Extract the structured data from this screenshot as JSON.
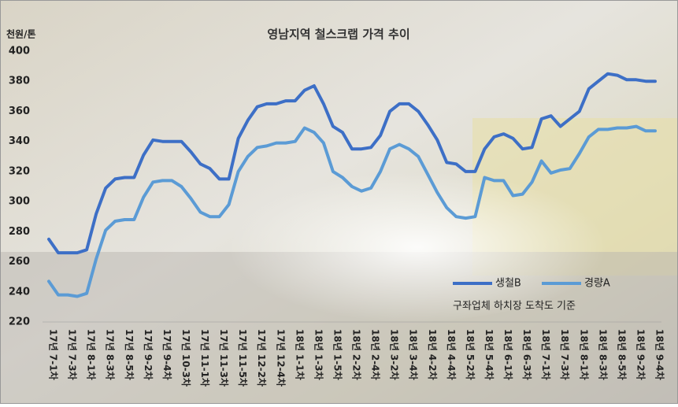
{
  "chart_data": {
    "type": "line",
    "title": "영남지역 철스크랩 가격 추이",
    "y_label": "천원/톤",
    "annotation": "구좌업체 하치장 도착도 기준",
    "categories": [
      "17년 7-1차",
      null,
      "17년 7-3차",
      null,
      "17년 8-1차",
      null,
      "17년 8-3차",
      null,
      "17년 8-5차",
      null,
      "17년 9-2차",
      null,
      "17년 9-4차",
      null,
      "17년 10-3차",
      null,
      "17년 11-1차",
      null,
      "17년 11-3차",
      null,
      "17년 11-5차",
      null,
      "17년 12-2차",
      null,
      "17년 12-4차",
      null,
      "18년 1-1차",
      null,
      "18년 1-3차",
      null,
      "18년 1-5차",
      null,
      "18년 2-2차",
      null,
      "18년 2-4차",
      null,
      "18년 3-2차",
      null,
      "18년 3-4차",
      null,
      "18년 4-2차",
      null,
      "18년 4-4차",
      null,
      "18년 5-2차",
      null,
      "18년 5-4차",
      null,
      "18년 6-1차",
      null,
      "18년 6-3차",
      null,
      "18년 7-1차",
      null,
      "18년 7-3차",
      null,
      "18년 8-1차",
      null,
      "18년 8-3차",
      null,
      "18년 8-5차",
      null,
      "18년 9-2차",
      null,
      "18년 9-4차"
    ],
    "series": [
      {
        "name": "생철B",
        "color": "#3d6fc6",
        "values": [
          275,
          266,
          266,
          266,
          268,
          292,
          309,
          315,
          316,
          316,
          331,
          341,
          340,
          340,
          340,
          333,
          325,
          322,
          315,
          315,
          342,
          354,
          363,
          365,
          365,
          367,
          367,
          374,
          377,
          365,
          350,
          346,
          335,
          335,
          336,
          344,
          360,
          365,
          365,
          360,
          351,
          341,
          326,
          325,
          320,
          320,
          335,
          343,
          345,
          342,
          335,
          336,
          355,
          357,
          350,
          355,
          360,
          375,
          380,
          385,
          384,
          381,
          381,
          380,
          380
        ]
      },
      {
        "name": "경량A",
        "color": "#5b9bd5",
        "values": [
          247,
          238,
          238,
          237,
          239,
          262,
          281,
          287,
          288,
          288,
          303,
          313,
          314,
          314,
          310,
          302,
          293,
          290,
          290,
          298,
          320,
          330,
          336,
          337,
          339,
          339,
          340,
          349,
          346,
          339,
          320,
          316,
          310,
          307,
          309,
          320,
          335,
          338,
          335,
          330,
          318,
          306,
          296,
          290,
          289,
          290,
          316,
          314,
          314,
          304,
          305,
          313,
          327,
          319,
          321,
          322,
          332,
          343,
          348,
          348,
          349,
          349,
          350,
          347,
          347
        ]
      }
    ],
    "ylim": [
      220,
      400
    ],
    "yticks": [
      220,
      240,
      260,
      280,
      300,
      320,
      340,
      360,
      380,
      400
    ],
    "legend": "lower right"
  }
}
